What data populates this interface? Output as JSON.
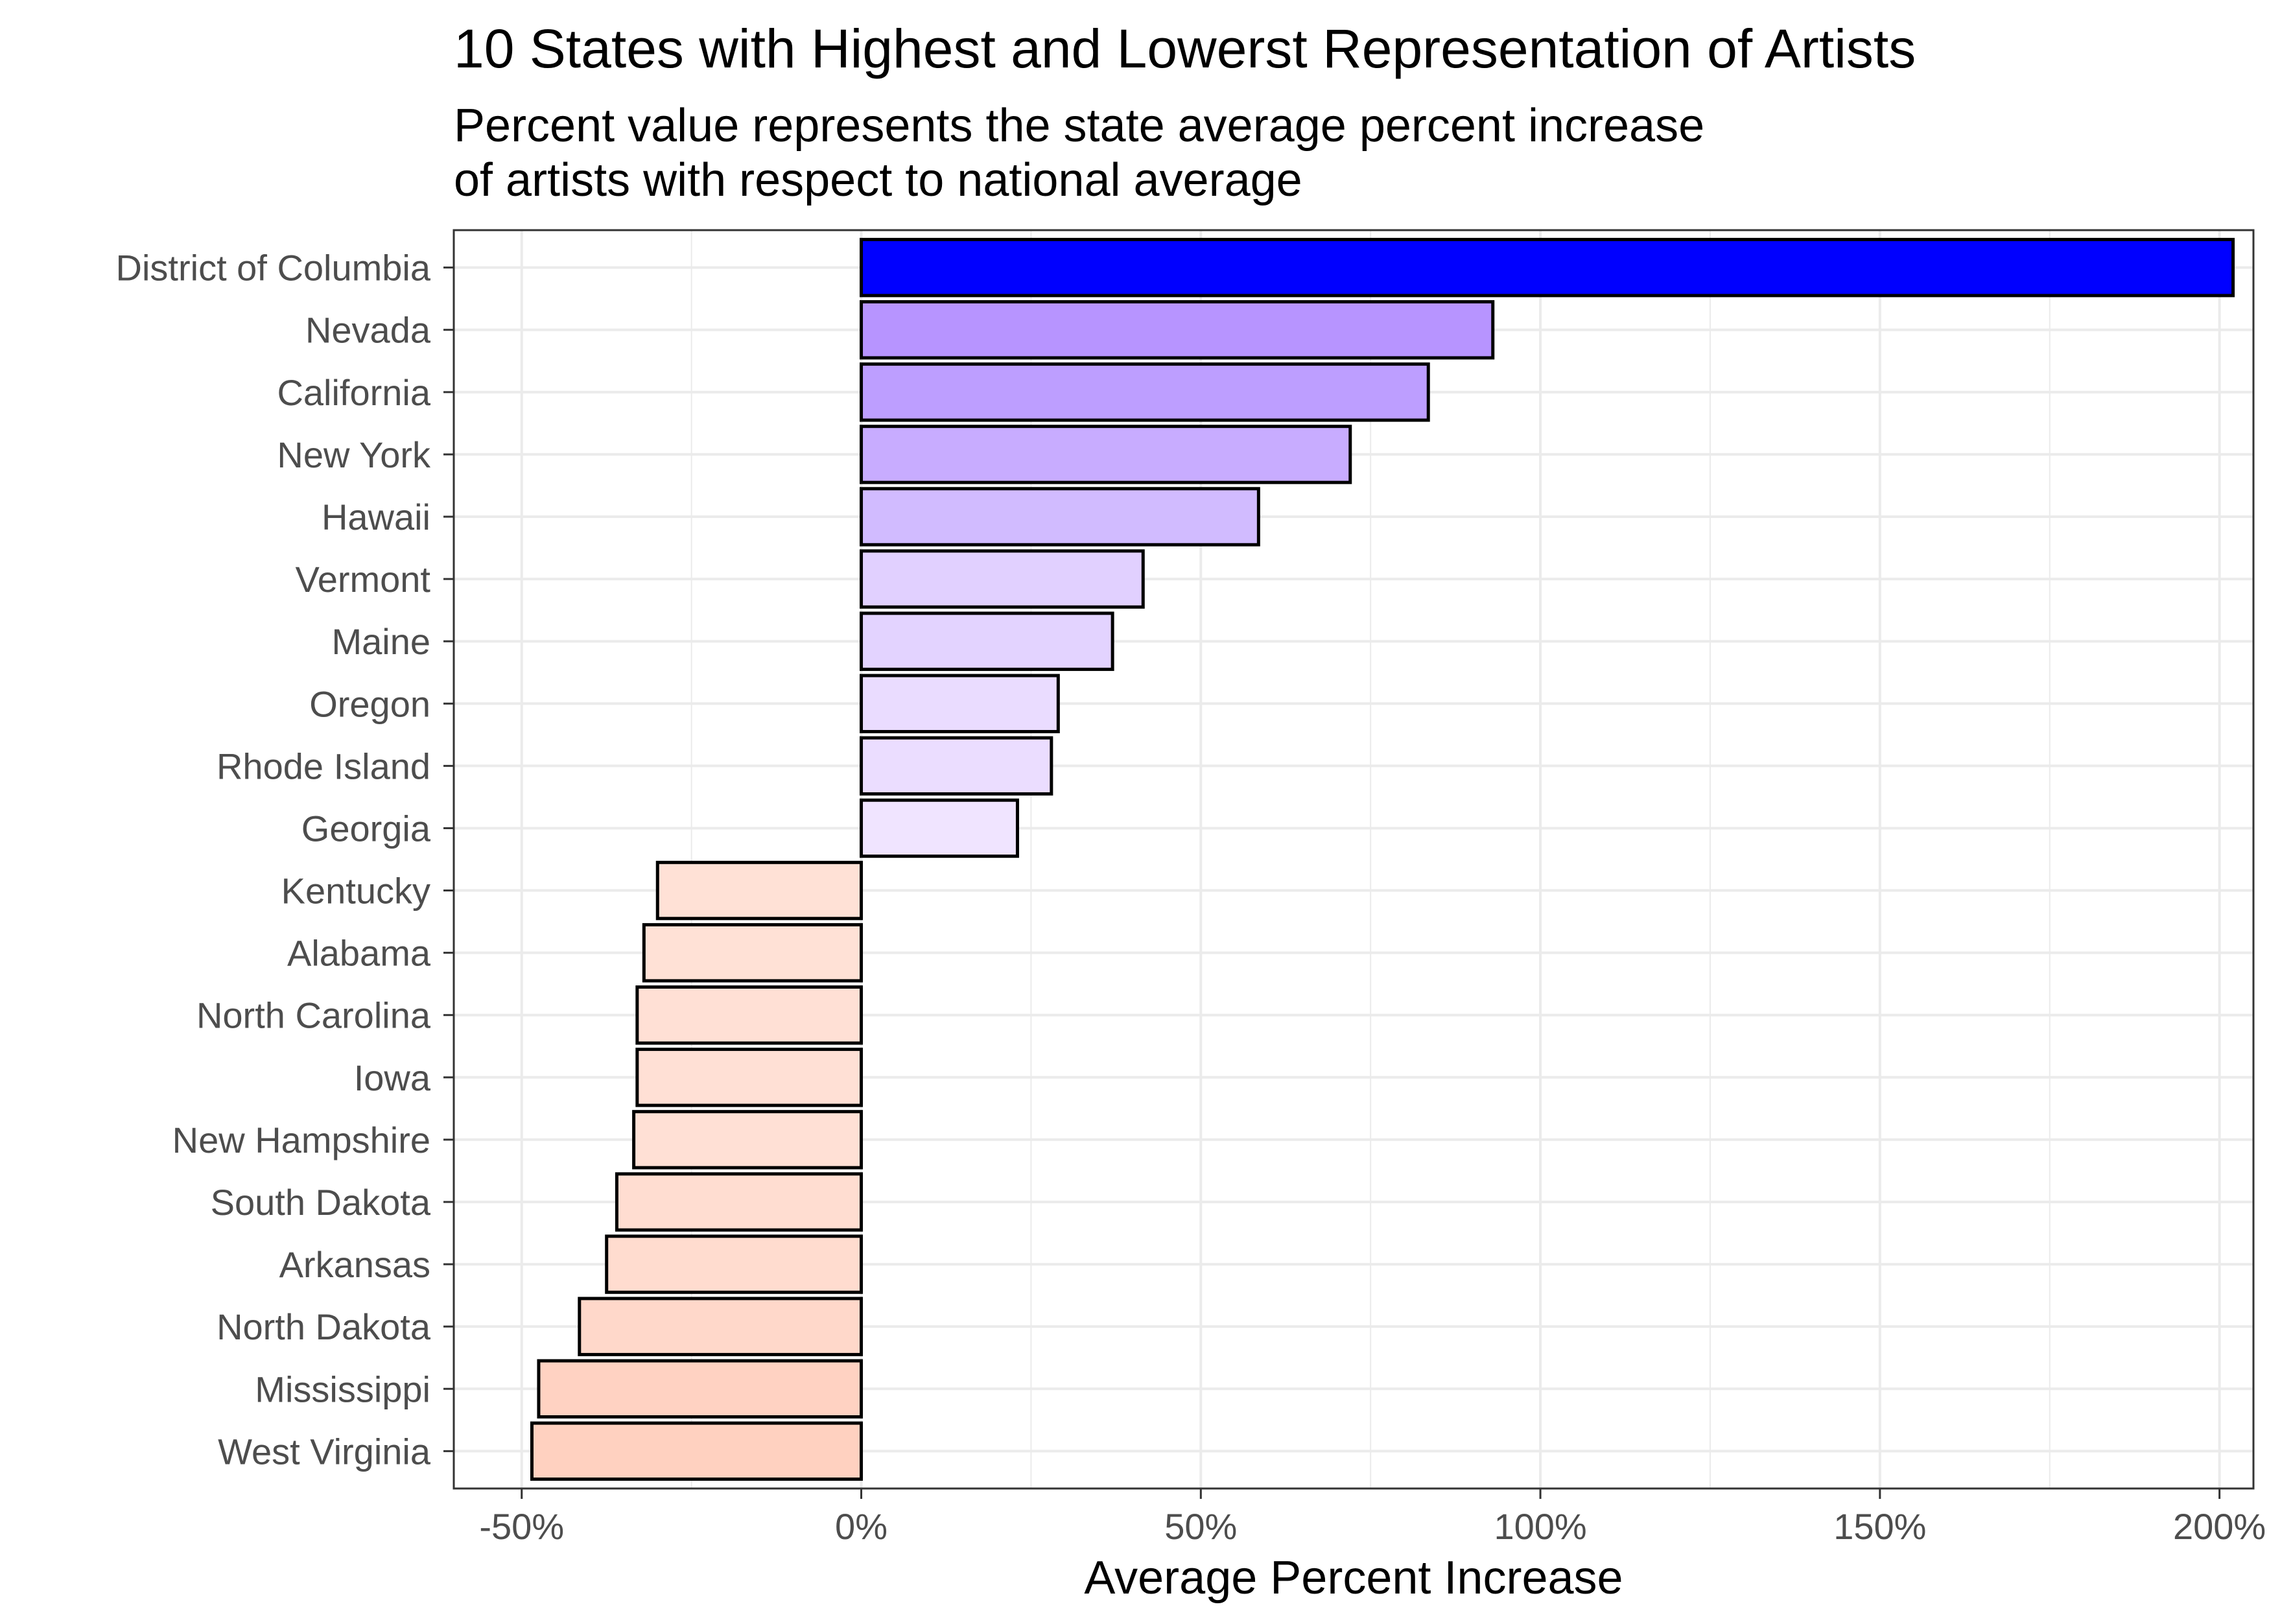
{
  "chart_data": {
    "type": "bar",
    "orientation": "horizontal",
    "title": "10 States with Highest and Lowerst Representation of Artists",
    "subtitle_lines": [
      "Percent value represents the state average percent increase",
      "of artists with respect to national average"
    ],
    "xlabel": "Average Percent Increase",
    "ylabel": "",
    "xlim": [
      -60,
      205
    ],
    "x_ticks": [
      -50,
      0,
      50,
      100,
      150,
      200
    ],
    "x_tick_labels": [
      "-50%",
      "0%",
      "50%",
      "100%",
      "150%",
      "200%"
    ],
    "grid": true,
    "legend": "none",
    "categories": [
      "District of Columbia",
      "Nevada",
      "California",
      "New York",
      "Hawaii",
      "Vermont",
      "Maine",
      "Oregon",
      "Rhode Island",
      "Georgia",
      "Kentucky",
      "Alabama",
      "North Carolina",
      "Iowa",
      "New Hampshire",
      "South Dakota",
      "Arkansas",
      "North Dakota",
      "Mississippi",
      "West Virginia"
    ],
    "values": [
      202,
      93,
      83.5,
      72,
      58.5,
      41.5,
      37,
      29,
      28,
      23,
      -30,
      -32,
      -33,
      -33,
      -33.5,
      -36,
      -37.5,
      -41.5,
      -47.5,
      -48.5
    ],
    "colors": [
      "#0000ff",
      "#b794ff",
      "#bd9eff",
      "#c8acff",
      "#d1bbff",
      "#e1d0ff",
      "#e3d3ff",
      "#eadcff",
      "#ebddff",
      "#f0e4ff",
      "#ffe1d6",
      "#ffe1d6",
      "#ffe0d5",
      "#ffe0d5",
      "#ffe0d5",
      "#ffddd1",
      "#ffdccf",
      "#ffd8ca",
      "#ffd2c2",
      "#ffd1c0"
    ]
  }
}
